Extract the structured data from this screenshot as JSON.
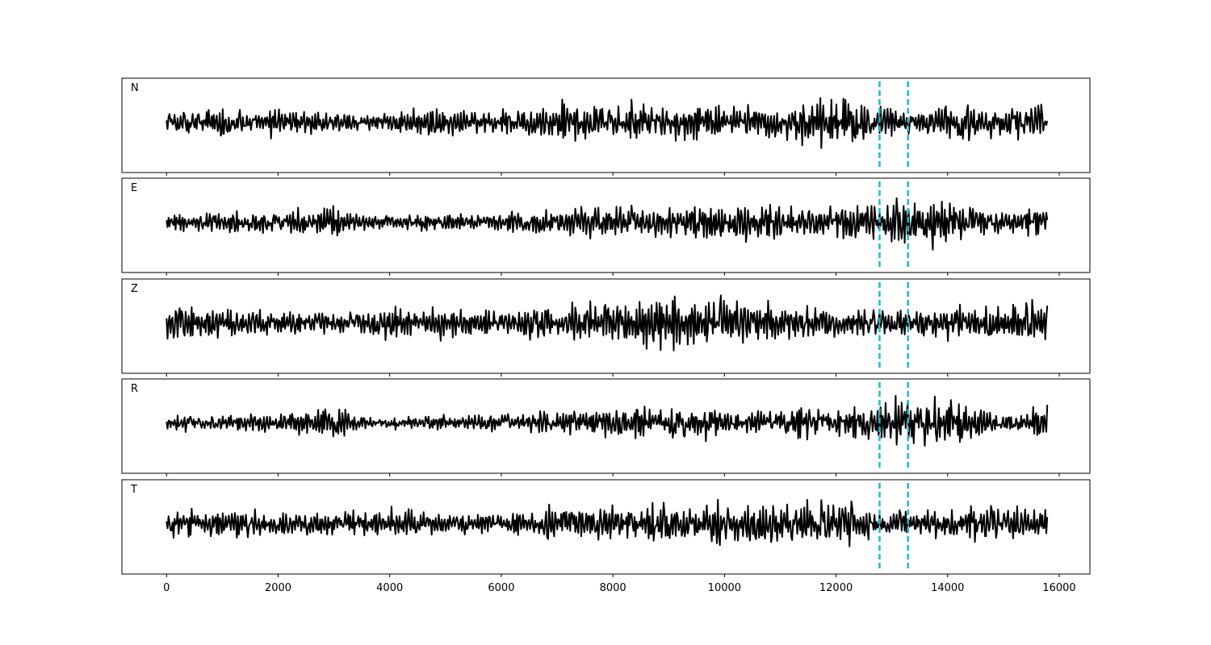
{
  "chart_data": {
    "type": "line",
    "title": "",
    "xlabel": "",
    "ylabel": "",
    "xlim": [
      -800,
      16550
    ],
    "sample_count": 15801,
    "x_ticks": [
      0,
      2000,
      4000,
      6000,
      8000,
      10000,
      12000,
      14000,
      16000
    ],
    "tick_labels": [
      "0",
      "2000",
      "4000",
      "6000",
      "8000",
      "10000",
      "12000",
      "14000",
      "16000"
    ],
    "vertical_markers": [
      12780,
      13290
    ],
    "marker_color": "#17becf",
    "line_color": "#000000",
    "grid": false,
    "legend": "none",
    "y_ticks_shown": false,
    "panels": [
      {
        "label": "N",
        "envelope": [
          [
            0,
            0.45
          ],
          [
            1000,
            0.5
          ],
          [
            2500,
            0.45
          ],
          [
            3800,
            0.3
          ],
          [
            4500,
            0.55
          ],
          [
            6000,
            0.4
          ],
          [
            7000,
            0.7
          ],
          [
            8500,
            0.8
          ],
          [
            10000,
            0.6
          ],
          [
            11000,
            0.75
          ],
          [
            12100,
            0.95
          ],
          [
            12800,
            0.6
          ],
          [
            13300,
            0.5
          ],
          [
            14000,
            0.6
          ],
          [
            15800,
            0.55
          ]
        ]
      },
      {
        "label": "E",
        "envelope": [
          [
            0,
            0.3
          ],
          [
            2000,
            0.45
          ],
          [
            3100,
            0.55
          ],
          [
            3700,
            0.25
          ],
          [
            5000,
            0.3
          ],
          [
            6500,
            0.4
          ],
          [
            8000,
            0.65
          ],
          [
            9000,
            0.55
          ],
          [
            10500,
            0.7
          ],
          [
            12000,
            0.55
          ],
          [
            13000,
            0.95
          ],
          [
            14300,
            0.85
          ],
          [
            15000,
            0.4
          ],
          [
            15800,
            0.55
          ]
        ]
      },
      {
        "label": "Z",
        "envelope": [
          [
            0,
            0.7
          ],
          [
            1500,
            0.5
          ],
          [
            3000,
            0.45
          ],
          [
            4500,
            0.65
          ],
          [
            6000,
            0.5
          ],
          [
            8600,
            0.9
          ],
          [
            9500,
            0.95
          ],
          [
            11000,
            0.7
          ],
          [
            12000,
            0.6
          ],
          [
            13500,
            0.5
          ],
          [
            15000,
            0.7
          ],
          [
            15800,
            0.9
          ]
        ]
      },
      {
        "label": "R",
        "envelope": [
          [
            0,
            0.25
          ],
          [
            2000,
            0.4
          ],
          [
            3100,
            0.55
          ],
          [
            3700,
            0.2
          ],
          [
            5500,
            0.3
          ],
          [
            7000,
            0.45
          ],
          [
            8900,
            0.6
          ],
          [
            10500,
            0.5
          ],
          [
            12000,
            0.55
          ],
          [
            13000,
            0.95
          ],
          [
            14200,
            0.9
          ],
          [
            15000,
            0.35
          ],
          [
            15800,
            0.6
          ]
        ]
      },
      {
        "label": "T",
        "envelope": [
          [
            0,
            0.5
          ],
          [
            1000,
            0.55
          ],
          [
            2500,
            0.45
          ],
          [
            3900,
            0.55
          ],
          [
            6000,
            0.4
          ],
          [
            7500,
            0.7
          ],
          [
            9000,
            0.8
          ],
          [
            10500,
            0.75
          ],
          [
            12100,
            0.98
          ],
          [
            12800,
            0.55
          ],
          [
            13500,
            0.45
          ],
          [
            14500,
            0.7
          ],
          [
            15800,
            0.55
          ]
        ]
      }
    ]
  }
}
